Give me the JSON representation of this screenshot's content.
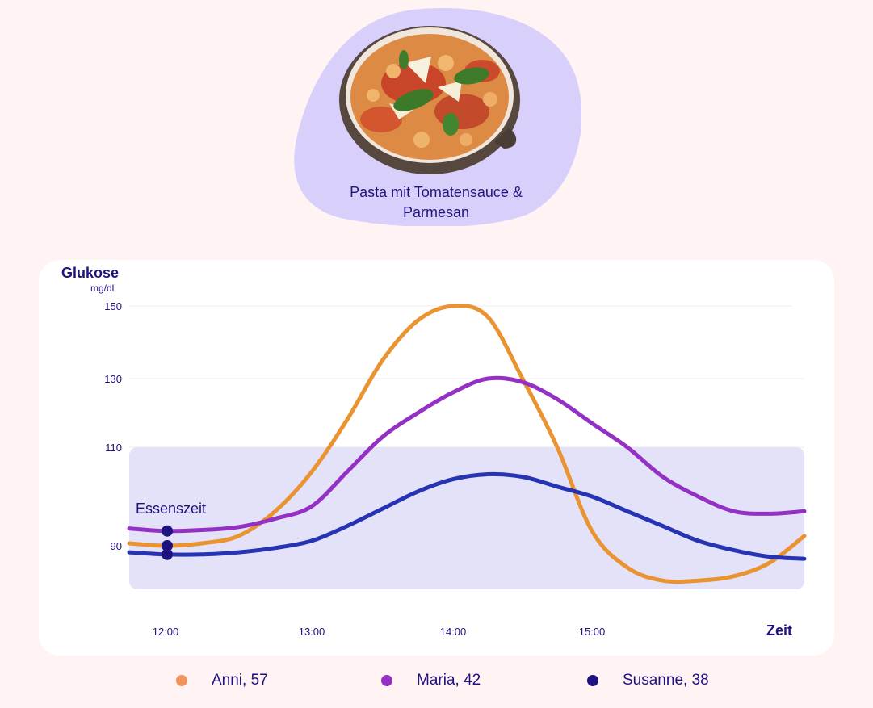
{
  "dish": {
    "title_line1": "Pasta mit Tomatensauce &",
    "title_line2": "Parmesan",
    "image": "pasta-bowl-image",
    "blob_color": "#d8d0fb"
  },
  "colors": {
    "background": "#fff3f4",
    "card": "#ffffff",
    "band": "#e3e2f8",
    "text": "#1e1280",
    "grid": "#eeeef4"
  },
  "chart_data": {
    "type": "line",
    "title": "Pasta mit Tomatensauce & Parmesan",
    "ylabel": "Glukose",
    "yunit": "mg/dl",
    "xlabel": "Zeit",
    "y_ticks": [
      150,
      130,
      110,
      90
    ],
    "x_ticks": [
      "12:00",
      "13:00",
      "14:00",
      "15:00"
    ],
    "grid": true,
    "target_band": {
      "from": 80,
      "to": 110
    },
    "annotation": {
      "label": "Essenszeit",
      "time": "12:00"
    },
    "legend_position": "bottom",
    "x_hours": [
      11.75,
      12.0,
      12.25,
      12.5,
      12.75,
      13.0,
      13.25,
      13.5,
      13.75,
      14.0,
      14.25,
      14.5,
      14.75,
      15.0,
      15.25,
      15.5,
      15.75,
      16.0,
      16.25,
      16.5
    ],
    "series": [
      {
        "name": "Anni, 57",
        "color": "#ea9431",
        "marker_at_meal": 90,
        "values": [
          90.5,
          90,
          90.5,
          92,
          97,
          105,
          118,
          135,
          146,
          150,
          147,
          130,
          110,
          93,
          85,
          82,
          82,
          83,
          86,
          92
        ]
      },
      {
        "name": "Maria, 42",
        "color": "#9530c4",
        "marker_at_meal": 93,
        "values": [
          93.5,
          93,
          93.2,
          93.8,
          95.5,
          98,
          105,
          113,
          120,
          126,
          130,
          129,
          124,
          117,
          110,
          104,
          100,
          97,
          96.5,
          97
        ]
      },
      {
        "name": "Susanne, 38",
        "color": "#2634b4",
        "marker_at_meal": 88,
        "values": [
          88.5,
          88,
          88,
          88.5,
          89.5,
          91,
          94,
          97.5,
          101,
          103.5,
          104.5,
          104,
          102,
          100,
          97,
          94,
          91,
          89,
          87.5,
          87
        ]
      }
    ]
  },
  "legend": [
    {
      "label": "Anni, 57",
      "color": "#f0945f"
    },
    {
      "label": "Maria, 42",
      "color": "#9530c4"
    },
    {
      "label": "Susanne, 38",
      "color": "#1e1280"
    }
  ]
}
